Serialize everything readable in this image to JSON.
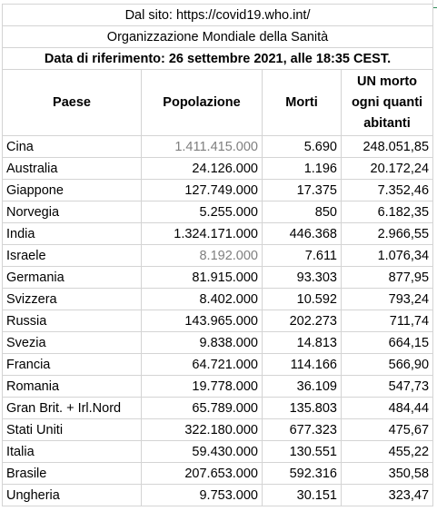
{
  "header": {
    "source": "Dal sito: https://covid19.who.int/",
    "organization": "Organizzazione Mondiale della Sanità",
    "reference_date": "Data di riferimento: 26 settembre 2021, alle 18:35 CEST."
  },
  "columns": {
    "country": "Paese",
    "population": "Popolazione",
    "deaths": "Morti",
    "ratio_line1": "UN morto",
    "ratio_line2": "ogni quanti",
    "ratio_line3": "abitanti"
  },
  "rows": [
    {
      "country": "Cina",
      "population": "1.411.415.000",
      "deaths": "5.690",
      "ratio": "248.051,85"
    },
    {
      "country": "Australia",
      "population": "24.126.000",
      "deaths": "1.196",
      "ratio": "20.172,24"
    },
    {
      "country": "Giappone",
      "population": "127.749.000",
      "deaths": "17.375",
      "ratio": "7.352,46"
    },
    {
      "country": "Norvegia",
      "population": "5.255.000",
      "deaths": "850",
      "ratio": "6.182,35"
    },
    {
      "country": "India",
      "population": "1.324.171.000",
      "deaths": "446.368",
      "ratio": "2.966,55"
    },
    {
      "country": "Israele",
      "population": "8.192.000",
      "deaths": "7.611",
      "ratio": "1.076,34"
    },
    {
      "country": "Germania",
      "population": "81.915.000",
      "deaths": "93.303",
      "ratio": "877,95"
    },
    {
      "country": "Svizzera",
      "population": "8.402.000",
      "deaths": "10.592",
      "ratio": "793,24"
    },
    {
      "country": "Russia",
      "population": "143.965.000",
      "deaths": "202.273",
      "ratio": "711,74"
    },
    {
      "country": "Svezia",
      "population": "9.838.000",
      "deaths": "14.813",
      "ratio": "664,15"
    },
    {
      "country": "Francia",
      "population": "64.721.000",
      "deaths": "114.166",
      "ratio": "566,90"
    },
    {
      "country": "Romania",
      "population": "19.778.000",
      "deaths": "36.109",
      "ratio": "547,73"
    },
    {
      "country": "Gran Brit. + Irl.Nord",
      "population": "65.789.000",
      "deaths": "135.803",
      "ratio": "484,44"
    },
    {
      "country": "Stati Uniti",
      "population": "322.180.000",
      "deaths": "677.323",
      "ratio": "475,67"
    },
    {
      "country": "Italia",
      "population": "59.430.000",
      "deaths": "130.551",
      "ratio": "455,22"
    },
    {
      "country": "Brasile",
      "population": "207.653.000",
      "deaths": "592.316",
      "ratio": "350,58"
    },
    {
      "country": "Ungheria",
      "population": "9.753.000",
      "deaths": "30.151",
      "ratio": "323,47"
    }
  ],
  "colors": {
    "grid": "#d4d4d4",
    "muted_text": "#7f7f7f",
    "text": "#000000"
  }
}
